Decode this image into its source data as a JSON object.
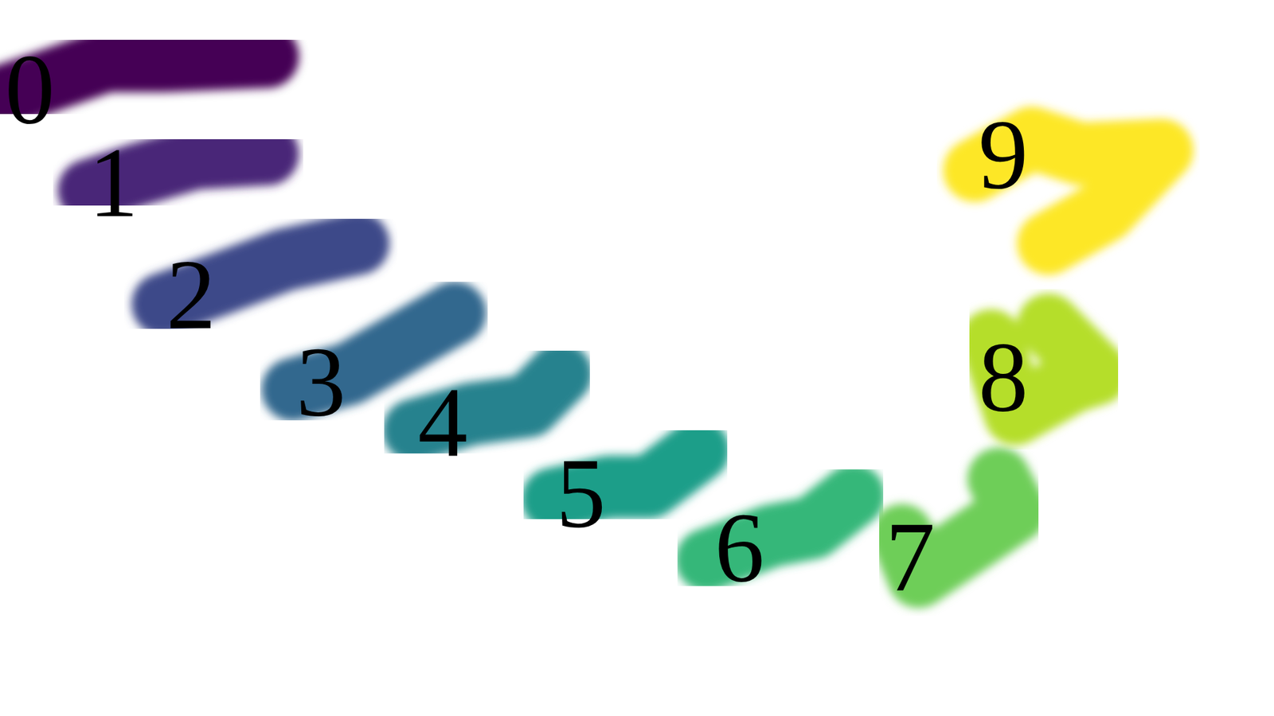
{
  "chart_data": {
    "type": "scatter",
    "marker": "blob",
    "tick_labels": false,
    "grid": false,
    "xlim": [
      0,
      100
    ],
    "ylim": [
      0,
      100
    ],
    "series": [
      {
        "name": "0",
        "color": "#440154",
        "x": [
          0,
          3.8,
          8.3,
          12.8,
          21.0
        ],
        "y": [
          86.4,
          88.7,
          91.5,
          91.5,
          92.1
        ]
      },
      {
        "name": "1",
        "color": "#482878",
        "x": [
          7.0,
          10.8,
          15.3,
          21.0
        ],
        "y": [
          73.4,
          75.6,
          77.9,
          78.5
        ]
      },
      {
        "name": "2",
        "color": "#3e4989",
        "x": [
          12.8,
          17.2,
          22.3,
          28.1
        ],
        "y": [
          57.5,
          60.3,
          63.7,
          66.0
        ]
      },
      {
        "name": "3",
        "color": "#31688e",
        "x": [
          23.0,
          27.4,
          31.9,
          35.7
        ],
        "y": [
          45.6,
          47.8,
          52.4,
          56.3
        ]
      },
      {
        "name": "4",
        "color": "#26828e",
        "x": [
          32.5,
          37.0,
          41.5,
          44.0
        ],
        "y": [
          39.9,
          42.2,
          43.3,
          47.8
        ]
      },
      {
        "name": "5",
        "color": "#1f9e89",
        "x": [
          43.4,
          47.8,
          51.0,
          54.8
        ],
        "y": [
          30.3,
          32.0,
          32.0,
          37.1
        ]
      },
      {
        "name": "6",
        "color": "#35b779",
        "x": [
          55.5,
          60.6,
          63.8,
          67.0
        ],
        "y": [
          21.8,
          25.2,
          26.3,
          30.8
        ]
      },
      {
        "name": "7",
        "color": "#6ece58",
        "x": [
          70.8,
          72.1,
          75.9,
          79.7,
          78.4
        ],
        "y": [
          25.2,
          19.5,
          24.0,
          28.6,
          33.1
        ]
      },
      {
        "name": "8",
        "color": "#b5de2b",
        "x": [
          77.8,
          79.7,
          84.2,
          86.1,
          82.3
        ],
        "y": [
          52.4,
          42.2,
          46.7,
          47.8,
          54.6
        ]
      },
      {
        "name": "9",
        "color": "#fde725",
        "x": [
          76.5,
          81.0,
          84.8,
          91.2,
          86.7,
          82.3
        ],
        "y": [
          76.2,
          80.7,
          78.5,
          79.0,
          70.5,
          66.0
        ]
      }
    ]
  }
}
